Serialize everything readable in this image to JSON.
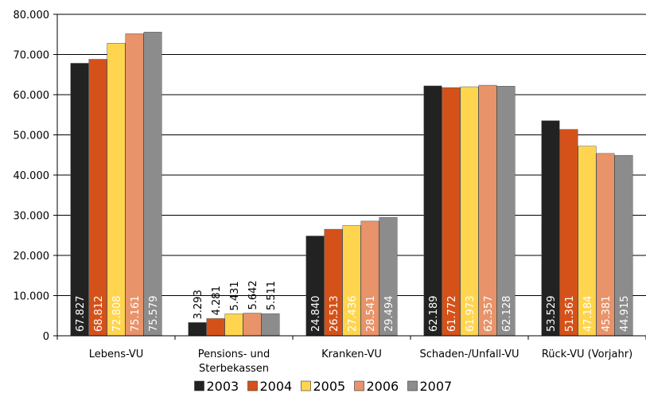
{
  "chart_data": {
    "type": "bar",
    "categories": [
      "Lebens-VU",
      "Pensions- und\nSterbekassen",
      "Kranken-VU",
      "Schaden-/Unfall-VU",
      "Rück-VU (Vorjahr)"
    ],
    "series": [
      {
        "name": "2003",
        "color": "#222222",
        "values": [
          67827,
          3293,
          24840,
          62189,
          53529
        ],
        "labels": [
          "67.827",
          "3.293",
          "24.840",
          "62.189",
          "53.529"
        ]
      },
      {
        "name": "2004",
        "color": "#d4521a",
        "values": [
          68812,
          4281,
          26513,
          61772,
          51361
        ],
        "labels": [
          "68.812",
          "4.281",
          "26.513",
          "61.772",
          "51.361"
        ]
      },
      {
        "name": "2005",
        "color": "#ffd54f",
        "values": [
          72808,
          5431,
          27436,
          61973,
          47184
        ],
        "labels": [
          "72.808",
          "5.431",
          "27.436",
          "61.973",
          "47.184"
        ]
      },
      {
        "name": "2006",
        "color": "#e8936a",
        "values": [
          75161,
          5642,
          28541,
          62357,
          45381
        ],
        "labels": [
          "75.161",
          "5.642",
          "28.541",
          "62.357",
          "45.381"
        ]
      },
      {
        "name": "2007",
        "color": "#8c8c8c",
        "values": [
          75579,
          5511,
          29494,
          62128,
          44915
        ],
        "labels": [
          "75.579",
          "5.511",
          "29.494",
          "62.128",
          "44.915"
        ]
      }
    ],
    "ylim": [
      0,
      80000
    ],
    "yticks": [
      0,
      10000,
      20000,
      30000,
      40000,
      50000,
      60000,
      70000,
      80000
    ],
    "ytick_labels": [
      "0",
      "10.000",
      "20.000",
      "30.000",
      "40.000",
      "50.000",
      "60.000",
      "70.000",
      "80.000"
    ],
    "grid": true,
    "legend_position": "bottom-center"
  }
}
